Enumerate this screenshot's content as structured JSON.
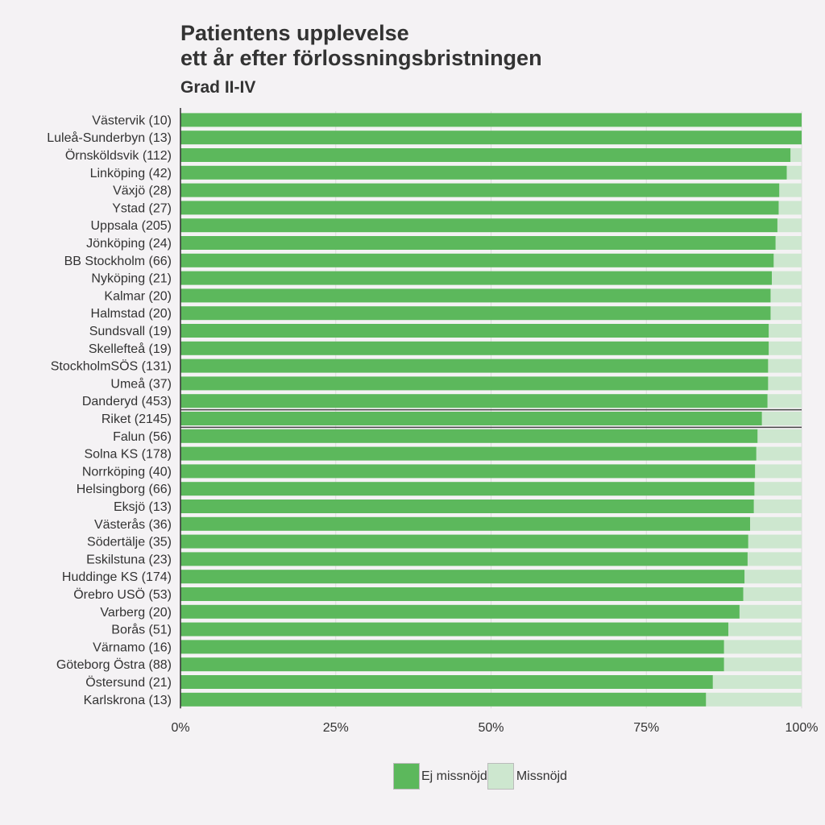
{
  "chart_data": {
    "type": "bar",
    "orientation": "horizontal",
    "stacked": true,
    "title_lines": [
      "Patientens upplevelse",
      "ett år efter förlossningsbristningen"
    ],
    "subtitle": "Grad II-IV",
    "xlim": [
      0,
      100
    ],
    "x_ticks": [
      "0%",
      "25%",
      "50%",
      "75%",
      "100%"
    ],
    "grid": "vertical",
    "legend_position": "bottom",
    "highlight_category": "Riket (2145)",
    "categories": [
      "Västervik (10)",
      "Luleå-Sunderbyn (13)",
      "Örnsköldsvik (112)",
      "Linköping (42)",
      "Växjö (28)",
      "Ystad (27)",
      "Uppsala (205)",
      "Jönköping (24)",
      "BB Stockholm (66)",
      "Nyköping (21)",
      "Kalmar (20)",
      "Halmstad (20)",
      "Sundsvall (19)",
      "Skellefteå (19)",
      "StockholmSÖS (131)",
      "Umeå (37)",
      "Danderyd (453)",
      "Riket (2145)",
      "Falun (56)",
      "Solna KS (178)",
      "Norrköping (40)",
      "Helsingborg (66)",
      "Eksjö (13)",
      "Västerås (36)",
      "Södertälje (35)",
      "Eskilstuna (23)",
      "Huddinge KS (174)",
      "Örebro USÖ (53)",
      "Varberg (20)",
      "Borås (51)",
      "Värnamo (16)",
      "Göteborg Östra (88)",
      "Östersund (21)",
      "Karlskrona (13)"
    ],
    "series": [
      {
        "name": "Ej missnöjd",
        "color": "#5cb85c",
        "values": [
          100,
          100,
          98.2,
          97.6,
          96.4,
          96.3,
          96.1,
          95.8,
          95.5,
          95.2,
          95,
          95,
          94.7,
          94.7,
          94.6,
          94.6,
          94.5,
          93.6,
          92.9,
          92.7,
          92.5,
          92.4,
          92.3,
          91.7,
          91.4,
          91.3,
          90.8,
          90.6,
          90,
          88.2,
          87.5,
          87.5,
          85.7,
          84.6
        ]
      },
      {
        "name": "Missnöjd",
        "color": "#cde7cf",
        "values": [
          0,
          0,
          1.8,
          2.4,
          3.6,
          3.7,
          3.9,
          4.2,
          4.5,
          4.8,
          5,
          5,
          5.3,
          5.3,
          5.4,
          5.4,
          5.5,
          6.4,
          7.1,
          7.3,
          7.5,
          7.6,
          7.7,
          8.3,
          8.6,
          8.7,
          9.2,
          9.4,
          10,
          11.8,
          12.5,
          12.5,
          14.3,
          15.4
        ]
      }
    ]
  }
}
